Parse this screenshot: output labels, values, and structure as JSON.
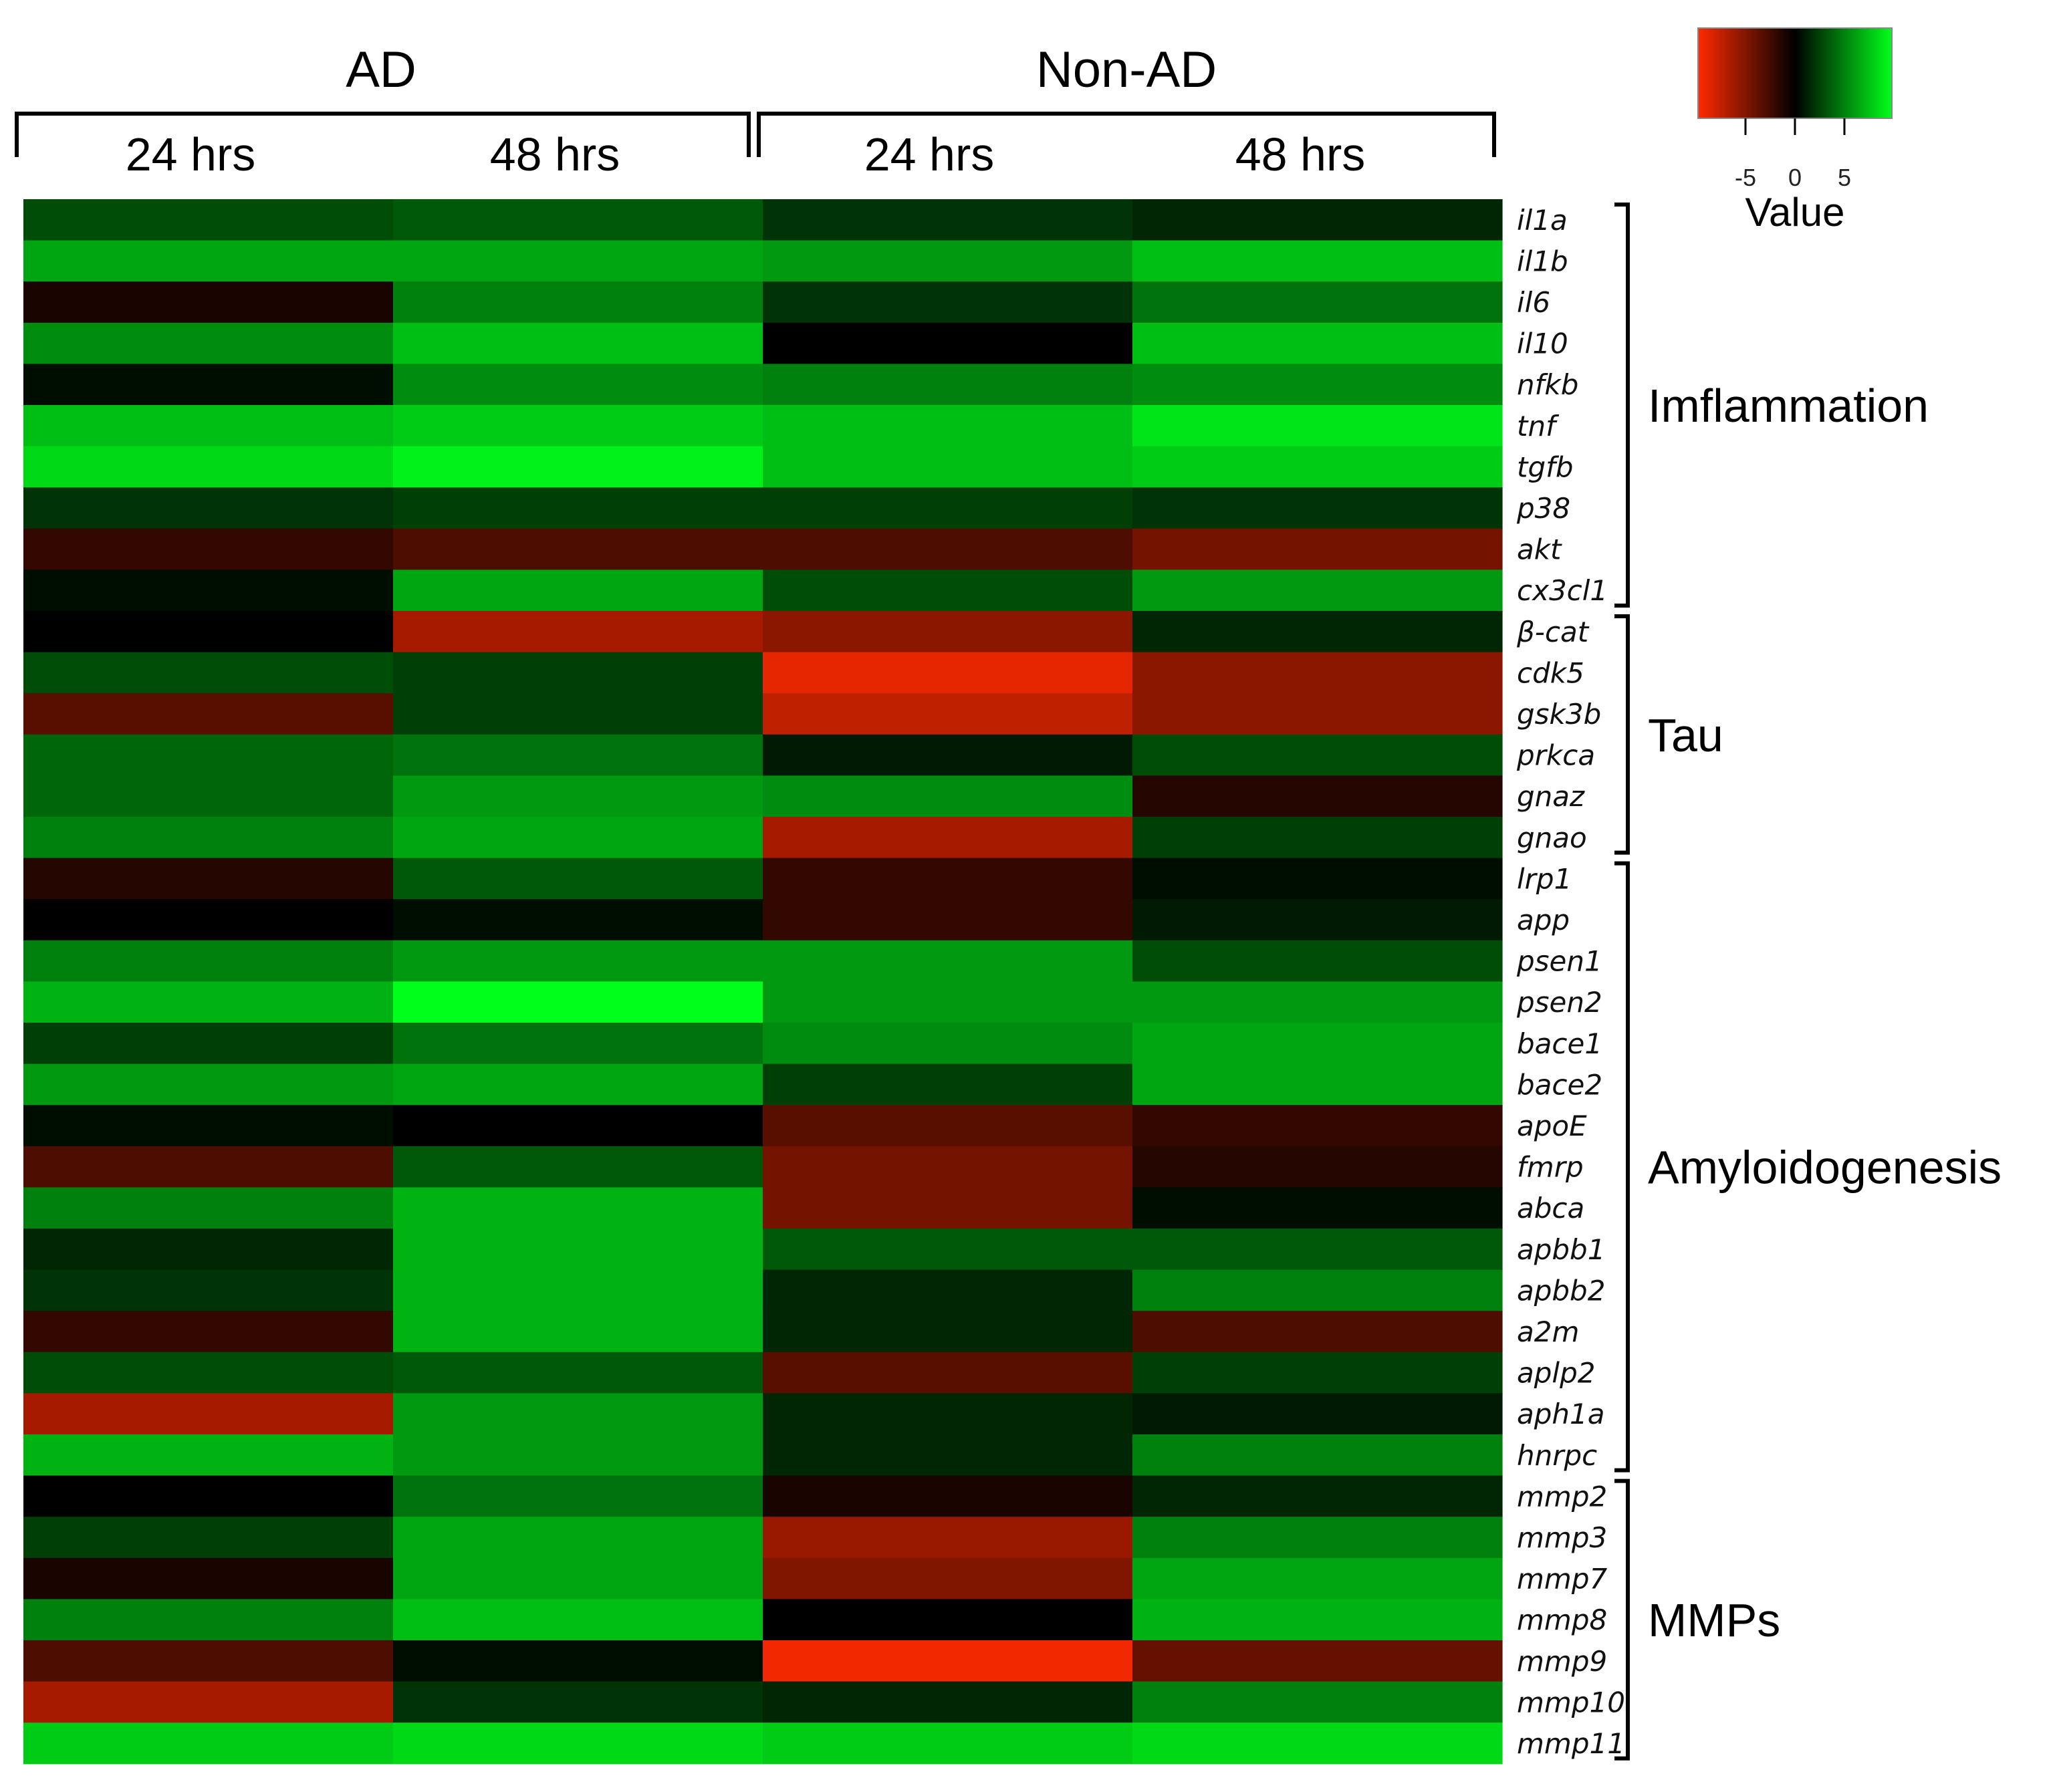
{
  "chart_data": {
    "type": "heatmap",
    "conditions": [
      {
        "label": "AD",
        "times": [
          "24 hrs",
          "48 hrs"
        ]
      },
      {
        "label": "Non-AD",
        "times": [
          "24 hrs",
          "48 hrs"
        ]
      }
    ],
    "columns": [
      "AD 24 hrs",
      "AD 48 hrs",
      "Non-AD 24 hrs",
      "Non-AD 48 hrs"
    ],
    "rows": [
      "il1a",
      "il1b",
      "il6",
      "il10",
      "nfkb",
      "tnf",
      "tgfb",
      "p38",
      "akt",
      "cx3cl1",
      "β-cat",
      "cdk5",
      "gsk3b",
      "prkca",
      "gnaz",
      "gnao",
      "lrp1",
      "app",
      "psen1",
      "psen2",
      "bace1",
      "bace2",
      "apoE",
      "fmrp",
      "abca",
      "apbb1",
      "apbb2",
      "a2m",
      "aplp2",
      "aph1a",
      "hnrpc",
      "mmp2",
      "mmp3",
      "mmp7",
      "mmp8",
      "mmp9",
      "mmp10",
      "mmp11"
    ],
    "values": [
      [
        3.0,
        3.5,
        2.0,
        1.5
      ],
      [
        6.5,
        6.5,
        6.0,
        7.5
      ],
      [
        -1.0,
        5.0,
        2.0,
        4.5
      ],
      [
        5.5,
        7.5,
        0.0,
        7.5
      ],
      [
        0.5,
        5.5,
        5.0,
        5.5
      ],
      [
        7.5,
        8.0,
        7.5,
        9.0
      ],
      [
        8.5,
        9.5,
        7.5,
        8.0
      ],
      [
        2.0,
        2.5,
        2.5,
        2.0
      ],
      [
        -2.0,
        -3.0,
        -3.0,
        -4.5
      ],
      [
        0.5,
        6.5,
        3.0,
        6.0
      ],
      [
        0.0,
        -6.5,
        -5.5,
        1.5
      ],
      [
        3.0,
        2.5,
        -9.0,
        -5.5
      ],
      [
        -3.5,
        2.5,
        -7.5,
        -5.5
      ],
      [
        4.0,
        4.5,
        1.0,
        3.0
      ],
      [
        4.0,
        6.0,
        5.5,
        -1.5
      ],
      [
        5.0,
        6.5,
        -6.5,
        2.5
      ],
      [
        -1.5,
        3.5,
        -2.0,
        0.5
      ],
      [
        0.0,
        0.5,
        -2.0,
        1.0
      ],
      [
        5.0,
        6.0,
        6.0,
        3.0
      ],
      [
        7.0,
        10.0,
        6.0,
        6.0
      ],
      [
        2.5,
        4.5,
        5.5,
        6.5
      ],
      [
        6.0,
        6.5,
        2.5,
        6.5
      ],
      [
        0.5,
        0.0,
        -3.5,
        -2.0
      ],
      [
        -3.0,
        3.5,
        -4.5,
        -1.5
      ],
      [
        5.0,
        7.0,
        -4.5,
        0.5
      ],
      [
        1.5,
        7.0,
        3.5,
        3.5
      ],
      [
        2.0,
        7.0,
        1.5,
        5.0
      ],
      [
        -2.0,
        7.0,
        1.5,
        -3.0
      ],
      [
        3.0,
        3.5,
        -3.5,
        2.5
      ],
      [
        -6.5,
        6.0,
        1.5,
        1.0
      ],
      [
        7.0,
        6.0,
        1.5,
        5.0
      ],
      [
        0.0,
        4.5,
        -1.0,
        1.5
      ],
      [
        2.5,
        6.5,
        -6.0,
        5.0
      ],
      [
        -1.0,
        6.5,
        -5.0,
        6.5
      ],
      [
        5.0,
        7.5,
        0.0,
        7.0
      ],
      [
        -3.0,
        0.5,
        -9.5,
        -4.0
      ],
      [
        -6.5,
        2.0,
        1.5,
        5.0
      ],
      [
        8.0,
        8.5,
        8.0,
        8.5
      ]
    ],
    "groups": [
      {
        "label": "Imflammation",
        "start": 0,
        "end": 9
      },
      {
        "label": "Tau",
        "start": 10,
        "end": 15
      },
      {
        "label": "Amyloidogenesis",
        "start": 16,
        "end": 30
      },
      {
        "label": "MMPs",
        "start": 31,
        "end": 37
      }
    ],
    "color_scale": {
      "low": "#ff2a00",
      "mid": "#000000",
      "high": "#00ff1a",
      "range": [
        -10,
        10
      ],
      "ticks": [
        "-5",
        "0",
        "5"
      ],
      "label": "Value"
    }
  }
}
